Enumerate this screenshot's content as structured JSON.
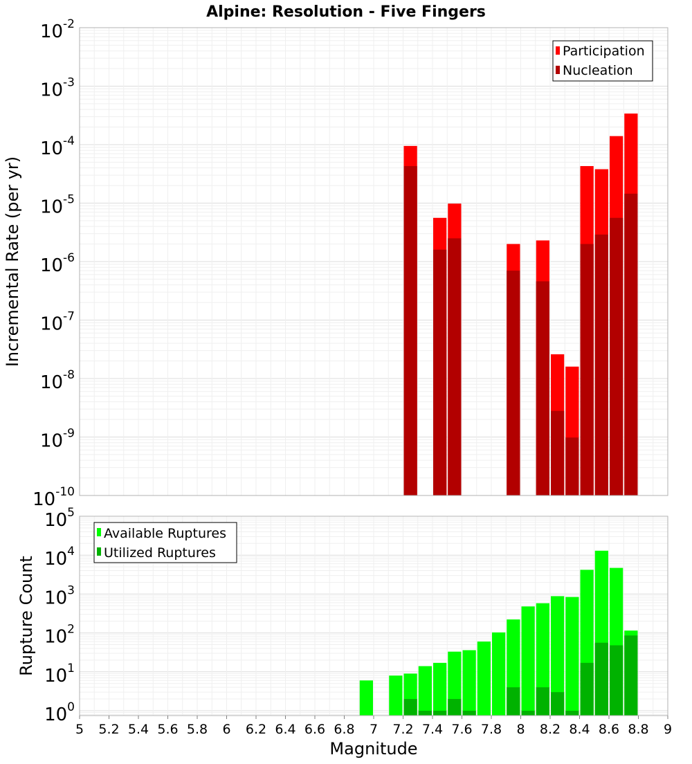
{
  "chart_data": [
    {
      "type": "bar",
      "title": "Alpine: Resolution - Five Fingers",
      "xlabel": "",
      "ylabel": "Incremental Rate (per yr)",
      "yscale": "log",
      "ylim": [
        1e-10,
        0.01
      ],
      "xlim": [
        5,
        9
      ],
      "ytick_exponents": [
        -2,
        -3,
        -4,
        -5,
        -6,
        -7,
        -8,
        -9,
        -10
      ],
      "legend": {
        "placement": "top-right",
        "entries": [
          "Participation",
          "Nucleation"
        ]
      },
      "colors": {
        "Participation": "#ff0000",
        "Nucleation": "#b20000"
      },
      "x": [
        7.25,
        7.45,
        7.55,
        7.95,
        8.15,
        8.25,
        8.35,
        8.45,
        8.55,
        8.65,
        8.75
      ],
      "series": [
        {
          "name": "Participation",
          "values": [
            9.5e-05,
            5.6e-06,
            9.8e-06,
            2e-06,
            2.3e-06,
            2.6e-08,
            1.6e-08,
            4.3e-05,
            3.8e-05,
            0.00014,
            0.00034
          ]
        },
        {
          "name": "Nucleation",
          "values": [
            4.3e-05,
            1.6e-06,
            2.5e-06,
            7e-07,
            4.6e-07,
            2.8e-09,
            9.8e-10,
            2e-06,
            2.9e-06,
            5.6e-06,
            1.45e-05
          ]
        }
      ],
      "grid": true
    },
    {
      "type": "bar",
      "title": "",
      "xlabel": "Magnitude",
      "ylabel": "Rupture Count",
      "yscale": "log",
      "ylim": [
        0.75,
        100000
      ],
      "xlim": [
        5,
        9
      ],
      "xticks": [
        "5",
        "5.2",
        "5.4",
        "5.6",
        "5.8",
        "6",
        "6.2",
        "6.4",
        "6.6",
        "6.8",
        "7",
        "7.2",
        "7.4",
        "7.6",
        "7.8",
        "8",
        "8.2",
        "8.4",
        "8.6",
        "8.8",
        "9"
      ],
      "ytick_exponents": [
        5,
        4,
        3,
        2,
        1,
        0
      ],
      "legend": {
        "placement": "top-left",
        "entries": [
          "Available Ruptures",
          "Utilized Ruptures"
        ]
      },
      "colors": {
        "Available Ruptures": "#00ff00",
        "Utilized Ruptures": "#00b200"
      },
      "x": [
        6.95,
        7.15,
        7.25,
        7.35,
        7.45,
        7.55,
        7.65,
        7.75,
        7.85,
        7.95,
        8.05,
        8.15,
        8.25,
        8.35,
        8.45,
        8.55,
        8.65,
        8.75
      ],
      "series": [
        {
          "name": "Available Ruptures",
          "values": [
            6,
            8,
            9,
            14,
            17,
            33,
            36,
            60,
            103,
            222,
            480,
            580,
            880,
            840,
            4200,
            13000,
            4700,
            115
          ]
        },
        {
          "name": "Utilized Ruptures",
          "values": [
            null,
            null,
            2,
            1,
            1,
            2,
            1,
            null,
            null,
            4,
            1,
            4,
            3,
            1,
            17,
            56,
            48,
            86
          ]
        }
      ],
      "grid": true
    }
  ]
}
